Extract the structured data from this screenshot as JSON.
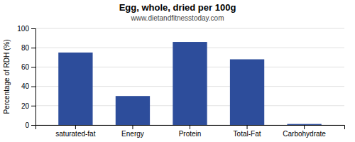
{
  "chart_data": {
    "type": "bar",
    "title": "Egg, whole, dried per 100g",
    "subtitle": "www.dietandfitnesstoday.com",
    "categories": [
      "saturated-fat",
      "Energy",
      "Protein",
      "Total-Fat",
      "Carbohydrate"
    ],
    "values": [
      75,
      30,
      86,
      68,
      1
    ],
    "color": "#2d4d9b",
    "ylabel": "Percentage of RDH (%)",
    "ylim": [
      0,
      100
    ],
    "yticks": [
      0,
      20,
      40,
      60,
      80,
      100
    ],
    "grid": true
  }
}
